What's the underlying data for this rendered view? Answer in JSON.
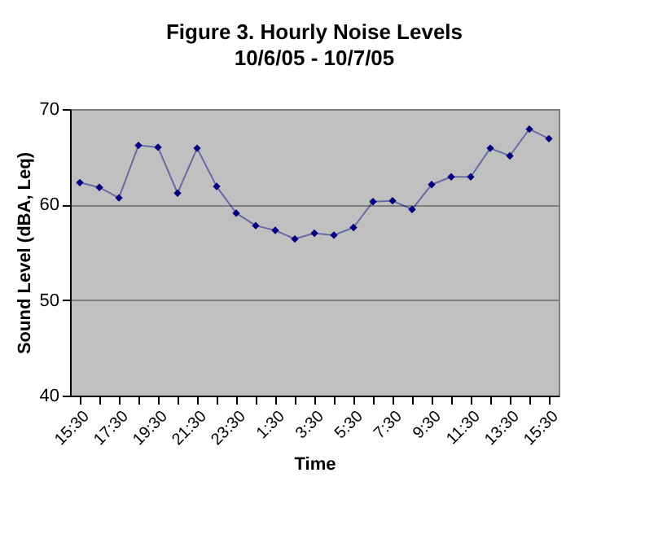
{
  "chart_data": {
    "type": "line",
    "title": "Figure 3. Hourly Noise Levels",
    "subtitle": "10/6/05 - 10/7/05",
    "xlabel": "Time",
    "ylabel": "Sound Level (dBA, Leq)",
    "categories": [
      "15:30",
      null,
      "17:30",
      null,
      "19:30",
      null,
      "21:30",
      null,
      "23:30",
      null,
      "1:30",
      null,
      "3:30",
      null,
      "5:30",
      null,
      "7:30",
      null,
      "9:30",
      null,
      "11:30",
      null,
      "13:30",
      null,
      "15:30"
    ],
    "series": [
      {
        "color": "#000080",
        "values": [
          62.3,
          61.8,
          60.7,
          66.2,
          66.0,
          61.2,
          65.9,
          61.9,
          59.1,
          57.8,
          57.3,
          56.4,
          57.0,
          56.8,
          57.6,
          60.3,
          60.4,
          59.5,
          62.1,
          62.9,
          62.9,
          65.9,
          65.1,
          67.9,
          66.9
        ]
      }
    ],
    "ylim": [
      40,
      70
    ],
    "yticks": [
      40,
      50,
      60,
      70
    ],
    "grid": "y",
    "marker": "diamond",
    "line_style": "solid"
  }
}
